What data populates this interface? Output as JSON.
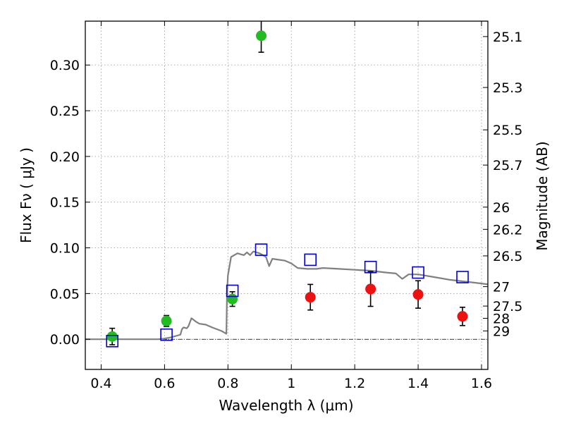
{
  "chart_data": {
    "type": "scatter",
    "xlabel": "Wavelength  λ (μm)",
    "ylabel": "Flux  Fν  ( μJy )",
    "ylabel_right": "Magnitude (AB)",
    "xlim": [
      0.35,
      1.62
    ],
    "ylim": [
      -0.033,
      0.348
    ],
    "grid": true,
    "x_ticks": [
      0.4,
      0.6,
      0.8,
      1.0,
      1.2,
      1.4,
      1.6
    ],
    "x_tick_labels": [
      "0.4",
      "0.6",
      "0.8",
      "1",
      "1.2",
      "1.4",
      "1.6"
    ],
    "y_ticks": [
      0.0,
      0.05,
      0.1,
      0.15,
      0.2,
      0.25,
      0.3
    ],
    "y_tick_labels": [
      "0.00",
      "0.05",
      "0.10",
      "0.15",
      "0.20",
      "0.25",
      "0.30"
    ],
    "right_ticks": [
      {
        "mag": 25.1,
        "label": "25.1"
      },
      {
        "mag": 25.3,
        "label": "25.3"
      },
      {
        "mag": 25.5,
        "label": "25.5"
      },
      {
        "mag": 25.7,
        "label": "25.7"
      },
      {
        "mag": 26,
        "label": "26"
      },
      {
        "mag": 26.2,
        "label": "26.2"
      },
      {
        "mag": 26.5,
        "label": "26.5"
      },
      {
        "mag": 27,
        "label": "27"
      },
      {
        "mag": 27.5,
        "label": "27.5"
      },
      {
        "mag": 28,
        "label": "28"
      },
      {
        "mag": 29,
        "label": "29"
      }
    ],
    "colors": {
      "green": "#22bb22",
      "red": "#ee1111",
      "blue": "#0000dd",
      "model": "#808080"
    },
    "series": [
      {
        "marker": "green-circle",
        "points": [
          {
            "x": 0.435,
            "y": 0.003,
            "err": 0.009
          },
          {
            "x": 0.606,
            "y": 0.02,
            "err": 0.006
          },
          {
            "x": 0.814,
            "y": 0.044,
            "err": 0.008
          },
          {
            "x": 0.905,
            "y": 0.332,
            "err": 0.018
          }
        ]
      },
      {
        "marker": "red-circle",
        "points": [
          {
            "x": 1.06,
            "y": 0.046,
            "err": 0.014
          },
          {
            "x": 1.25,
            "y": 0.055,
            "err": 0.019
          },
          {
            "x": 1.4,
            "y": 0.049,
            "err": 0.015
          },
          {
            "x": 1.54,
            "y": 0.025,
            "err": 0.01
          }
        ]
      },
      {
        "marker": "blue-open-square",
        "points": [
          {
            "x": 0.435,
            "y": -0.002
          },
          {
            "x": 0.606,
            "y": 0.005
          },
          {
            "x": 0.814,
            "y": 0.053
          },
          {
            "x": 0.905,
            "y": 0.098
          },
          {
            "x": 1.06,
            "y": 0.087
          },
          {
            "x": 1.25,
            "y": 0.079
          },
          {
            "x": 1.4,
            "y": 0.073
          },
          {
            "x": 1.54,
            "y": 0.068
          }
        ]
      },
      {
        "marker": "gray-line",
        "points": [
          {
            "x": 0.35,
            "y": 0.0
          },
          {
            "x": 0.58,
            "y": 0.0
          },
          {
            "x": 0.6,
            "y": 0.0008
          },
          {
            "x": 0.62,
            "y": 0.002
          },
          {
            "x": 0.64,
            "y": 0.004
          },
          {
            "x": 0.65,
            "y": 0.005
          },
          {
            "x": 0.655,
            "y": 0.011
          },
          {
            "x": 0.66,
            "y": 0.013
          },
          {
            "x": 0.67,
            "y": 0.012
          },
          {
            "x": 0.675,
            "y": 0.014
          },
          {
            "x": 0.685,
            "y": 0.023
          },
          {
            "x": 0.7,
            "y": 0.019
          },
          {
            "x": 0.71,
            "y": 0.017
          },
          {
            "x": 0.73,
            "y": 0.016
          },
          {
            "x": 0.75,
            "y": 0.013
          },
          {
            "x": 0.78,
            "y": 0.009
          },
          {
            "x": 0.795,
            "y": 0.006
          },
          {
            "x": 0.797,
            "y": 0.05
          },
          {
            "x": 0.8,
            "y": 0.07
          },
          {
            "x": 0.81,
            "y": 0.09
          },
          {
            "x": 0.83,
            "y": 0.094
          },
          {
            "x": 0.85,
            "y": 0.092
          },
          {
            "x": 0.86,
            "y": 0.095
          },
          {
            "x": 0.87,
            "y": 0.092
          },
          {
            "x": 0.88,
            "y": 0.096
          },
          {
            "x": 0.9,
            "y": 0.094
          },
          {
            "x": 0.92,
            "y": 0.09
          },
          {
            "x": 0.93,
            "y": 0.08
          },
          {
            "x": 0.94,
            "y": 0.088
          },
          {
            "x": 0.96,
            "y": 0.087
          },
          {
            "x": 0.98,
            "y": 0.086
          },
          {
            "x": 1.0,
            "y": 0.083
          },
          {
            "x": 1.02,
            "y": 0.078
          },
          {
            "x": 1.05,
            "y": 0.077
          },
          {
            "x": 1.08,
            "y": 0.077
          },
          {
            "x": 1.1,
            "y": 0.078
          },
          {
            "x": 1.15,
            "y": 0.077
          },
          {
            "x": 1.2,
            "y": 0.076
          },
          {
            "x": 1.25,
            "y": 0.075
          },
          {
            "x": 1.3,
            "y": 0.073
          },
          {
            "x": 1.33,
            "y": 0.072
          },
          {
            "x": 1.35,
            "y": 0.066
          },
          {
            "x": 1.37,
            "y": 0.071
          },
          {
            "x": 1.4,
            "y": 0.071
          },
          {
            "x": 1.45,
            "y": 0.068
          },
          {
            "x": 1.5,
            "y": 0.065
          },
          {
            "x": 1.55,
            "y": 0.063
          },
          {
            "x": 1.6,
            "y": 0.061
          },
          {
            "x": 1.62,
            "y": 0.06
          }
        ]
      }
    ]
  }
}
